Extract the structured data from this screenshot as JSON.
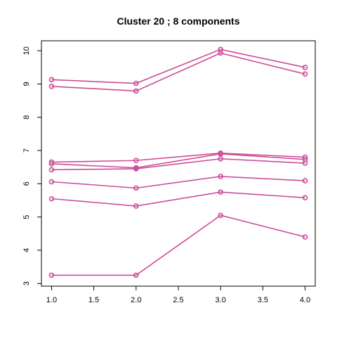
{
  "chart_data": {
    "type": "line",
    "title": "Cluster 20 ; 8 components",
    "xlabel": "",
    "ylabel": "",
    "x": [
      1,
      2,
      3,
      4
    ],
    "xlim": [
      0.88,
      4.12
    ],
    "ylim": [
      2.92,
      10.3
    ],
    "x_ticks": [
      "1.0",
      "1.5",
      "2.0",
      "2.5",
      "3.0",
      "3.5",
      "4.0"
    ],
    "y_ticks": [
      "3",
      "4",
      "5",
      "6",
      "7",
      "8",
      "9",
      "10"
    ],
    "grid": false,
    "color": "#CC4C99",
    "series": [
      {
        "values": [
          9.13,
          9.02,
          10.04,
          9.5
        ]
      },
      {
        "values": [
          8.93,
          8.79,
          9.93,
          9.3
        ]
      },
      {
        "values": [
          6.65,
          6.7,
          6.92,
          6.8
        ]
      },
      {
        "values": [
          6.6,
          6.48,
          6.9,
          6.73
        ]
      },
      {
        "values": [
          6.42,
          6.45,
          6.75,
          6.62
        ]
      },
      {
        "values": [
          6.06,
          5.87,
          6.22,
          6.09
        ]
      },
      {
        "values": [
          5.55,
          5.33,
          5.75,
          5.58
        ]
      },
      {
        "values": [
          3.25,
          3.25,
          5.05,
          4.4
        ]
      }
    ]
  }
}
